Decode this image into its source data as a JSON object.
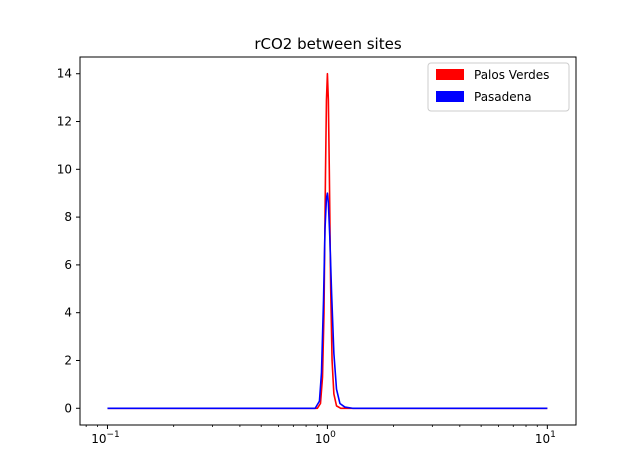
{
  "chart_data": {
    "type": "line",
    "title": "rCO2 between sites",
    "xlabel": "",
    "ylabel": "",
    "xscale": "log",
    "xlim": [
      0.075,
      13.5
    ],
    "ylim": [
      -0.7,
      14.7
    ],
    "grid": false,
    "legend": "top-right",
    "x_ticks": [
      {
        "value": 0.1,
        "base": "10",
        "exp": "−1"
      },
      {
        "value": 1,
        "base": "10",
        "exp": "0"
      },
      {
        "value": 10,
        "base": "10",
        "exp": "1"
      }
    ],
    "y_ticks": [
      0,
      2,
      4,
      6,
      8,
      10,
      12,
      14
    ],
    "series": [
      {
        "name": "Palos Verdes",
        "color": "#ff0000",
        "x": [
          0.1,
          0.5,
          0.9,
          0.93,
          0.95,
          0.965,
          0.98,
          0.99,
          1.0,
          1.01,
          1.02,
          1.035,
          1.05,
          1.07,
          1.1,
          1.15,
          2,
          10
        ],
        "y": [
          0,
          0,
          0,
          0.2,
          1.3,
          4.0,
          9.8,
          12.9,
          14.0,
          12.9,
          10.0,
          5.0,
          2.0,
          0.6,
          0.1,
          0,
          0,
          0
        ]
      },
      {
        "name": "Pasadena",
        "color": "#0000ff",
        "x": [
          0.1,
          0.5,
          0.88,
          0.92,
          0.94,
          0.96,
          0.975,
          0.99,
          1.0,
          1.01,
          1.025,
          1.045,
          1.07,
          1.1,
          1.14,
          1.2,
          1.3,
          2,
          10
        ],
        "y": [
          0,
          0,
          0,
          0.3,
          1.5,
          4.5,
          7.5,
          8.8,
          9.0,
          8.6,
          7.2,
          4.8,
          2.3,
          0.8,
          0.2,
          0.05,
          0,
          0,
          0
        ]
      }
    ]
  }
}
